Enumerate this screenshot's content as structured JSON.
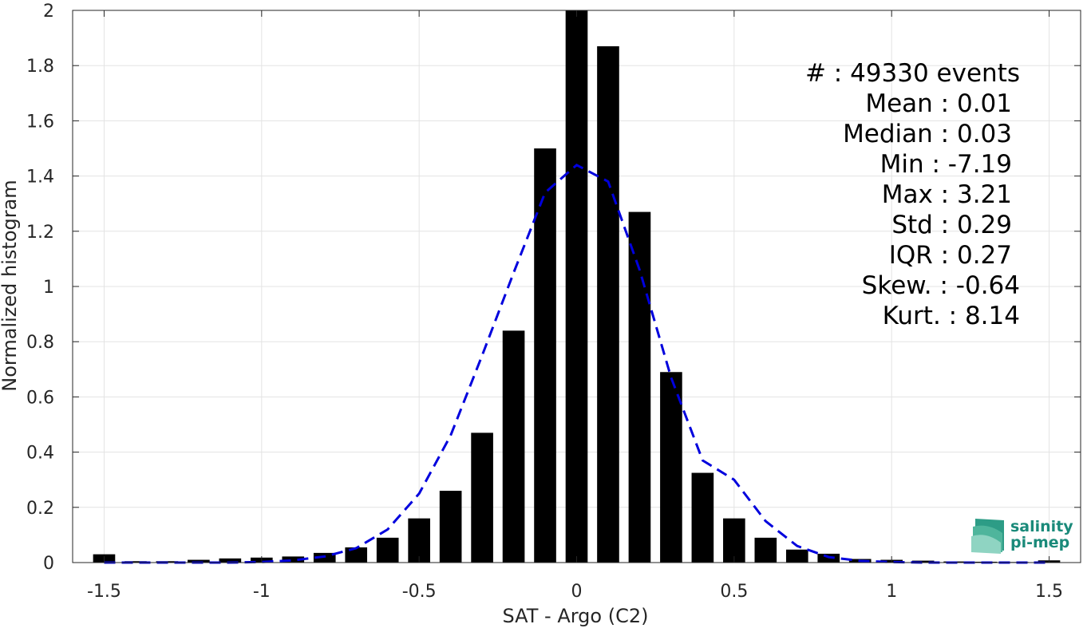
{
  "chart_data": {
    "type": "bar",
    "xlabel": "SAT - Argo (C2)",
    "ylabel": "Normalized histogram",
    "xlim": [
      -1.6,
      1.6
    ],
    "ylim": [
      0,
      2
    ],
    "grid": true,
    "x_ticks": [
      -1.5,
      -1,
      -0.5,
      0,
      0.5,
      1,
      1.5
    ],
    "x_tick_labels": [
      "-1.5",
      "-1",
      "-0.5",
      "0",
      "0.5",
      "1",
      "1.5"
    ],
    "y_ticks": [
      0,
      0.2,
      0.4,
      0.6,
      0.8,
      1,
      1.2,
      1.4,
      1.6,
      1.8,
      2
    ],
    "y_tick_labels": [
      "0",
      "0.2",
      "0.4",
      "0.6",
      "0.8",
      "1",
      "1.2",
      "1.4",
      "1.6",
      "1.8",
      "2"
    ],
    "bin_width": 0.1,
    "bar_color": "#000000",
    "bars": {
      "x": [
        -1.5,
        -1.4,
        -1.3,
        -1.2,
        -1.1,
        -1.0,
        -0.9,
        -0.8,
        -0.7,
        -0.6,
        -0.5,
        -0.4,
        -0.3,
        -0.2,
        -0.1,
        0.0,
        0.1,
        0.2,
        0.3,
        0.4,
        0.5,
        0.6,
        0.7,
        0.8,
        0.9,
        1.0,
        1.1,
        1.2,
        1.3,
        1.4,
        1.5
      ],
      "values": [
        0.03,
        0.005,
        0.005,
        0.01,
        0.015,
        0.018,
        0.022,
        0.035,
        0.055,
        0.09,
        0.16,
        0.26,
        0.47,
        0.84,
        1.5,
        2.0,
        1.87,
        1.27,
        0.69,
        0.325,
        0.16,
        0.09,
        0.047,
        0.032,
        0.013,
        0.01,
        0.007,
        0.004,
        0.003,
        0.002,
        0.008
      ]
    },
    "fit_curve": {
      "style": "dashed",
      "color": "#0000dd",
      "x": [
        -1.5,
        -1.4,
        -1.3,
        -1.2,
        -1.1,
        -1.0,
        -0.9,
        -0.8,
        -0.7,
        -0.6,
        -0.5,
        -0.4,
        -0.3,
        -0.2,
        -0.1,
        0.0,
        0.1,
        0.2,
        0.3,
        0.4,
        0.5,
        0.6,
        0.7,
        0.8,
        0.9,
        1.0,
        1.1,
        1.2,
        1.3,
        1.4,
        1.5
      ],
      "y": [
        0.0,
        0.0,
        0.0,
        0.0,
        0.0,
        0.002,
        0.008,
        0.022,
        0.052,
        0.12,
        0.25,
        0.46,
        0.75,
        1.05,
        1.34,
        1.44,
        1.38,
        1.06,
        0.67,
        0.37,
        0.3,
        0.15,
        0.06,
        0.02,
        0.006,
        0.002,
        0.0,
        0.0,
        0.0,
        0.0,
        0.0
      ]
    }
  },
  "stats": [
    {
      "label": "#  : 49330 events"
    },
    {
      "label": "Mean : 0.01"
    },
    {
      "label": "Median : 0.03"
    },
    {
      "label": "Min : -7.19"
    },
    {
      "label": "Max : 3.21"
    },
    {
      "label": "Std : 0.29"
    },
    {
      "label": "IQR : 0.27"
    },
    {
      "label": "Skew. : -0.64"
    },
    {
      "label": "Kurt. : 8.14"
    }
  ],
  "logo": {
    "line1": "salinity",
    "line2": "pi-mep",
    "color": "#1a8a7a"
  }
}
